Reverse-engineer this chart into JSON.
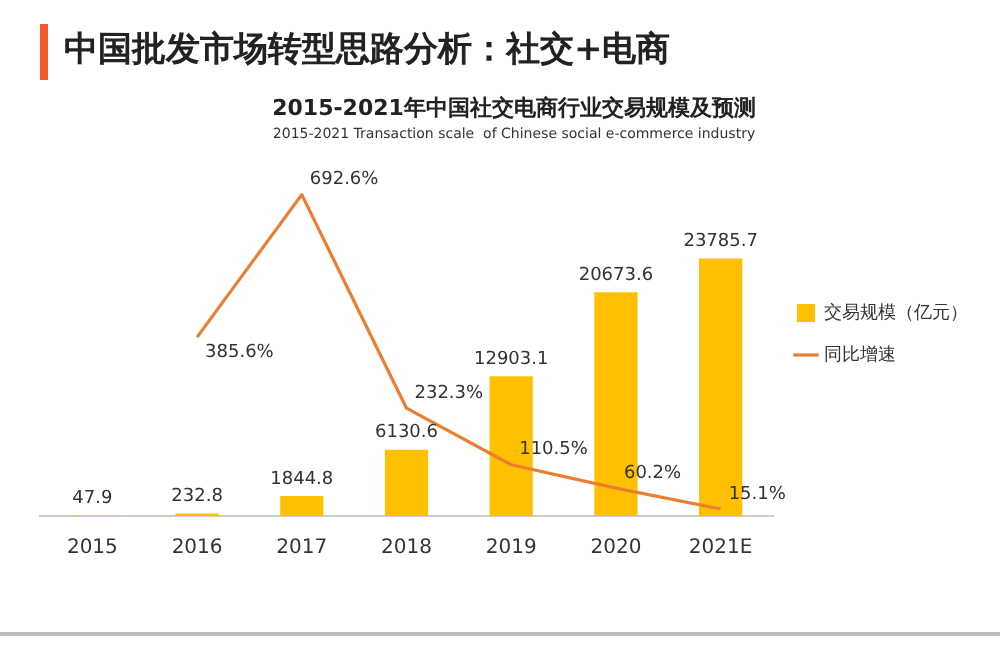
{
  "chart_data": {
    "type": "bar",
    "title": "中国批发市场转型思路分析：社交+电商",
    "subtitle": "2015-2021年中国社交电商行业交易规模及预测",
    "annotations": [
      "2015-2021 Transaction scale  of Chinese social e-commerce industry"
    ],
    "categories": [
      "2015",
      "2016",
      "2017",
      "2018",
      "2019",
      "2020",
      "2021E"
    ],
    "series": [
      {
        "name": "交易规模（亿元）",
        "color": "#ffc000",
        "values": [
          47.9,
          232.8,
          1844.8,
          6130.6,
          12903.1,
          20673.6,
          23785.7
        ],
        "value_labels": [
          "47.9",
          "232.8",
          "1844.8",
          "6130.6",
          "12903.1",
          "20673.6",
          "23785.7"
        ]
      },
      {
        "name": "同比增速",
        "type": "line",
        "axis": "y2",
        "color": "#ed7d31",
        "values": [
          null,
          385.6,
          692.6,
          232.3,
          110.5,
          60.2,
          15.1
        ],
        "value_labels": [
          null,
          "385.6%",
          "692.6%",
          "232.3%",
          "110.5%",
          "60.2%",
          "15.1%"
        ]
      }
    ],
    "legend": "right",
    "grid": false,
    "tick_labels": "x",
    "marker": "none"
  }
}
